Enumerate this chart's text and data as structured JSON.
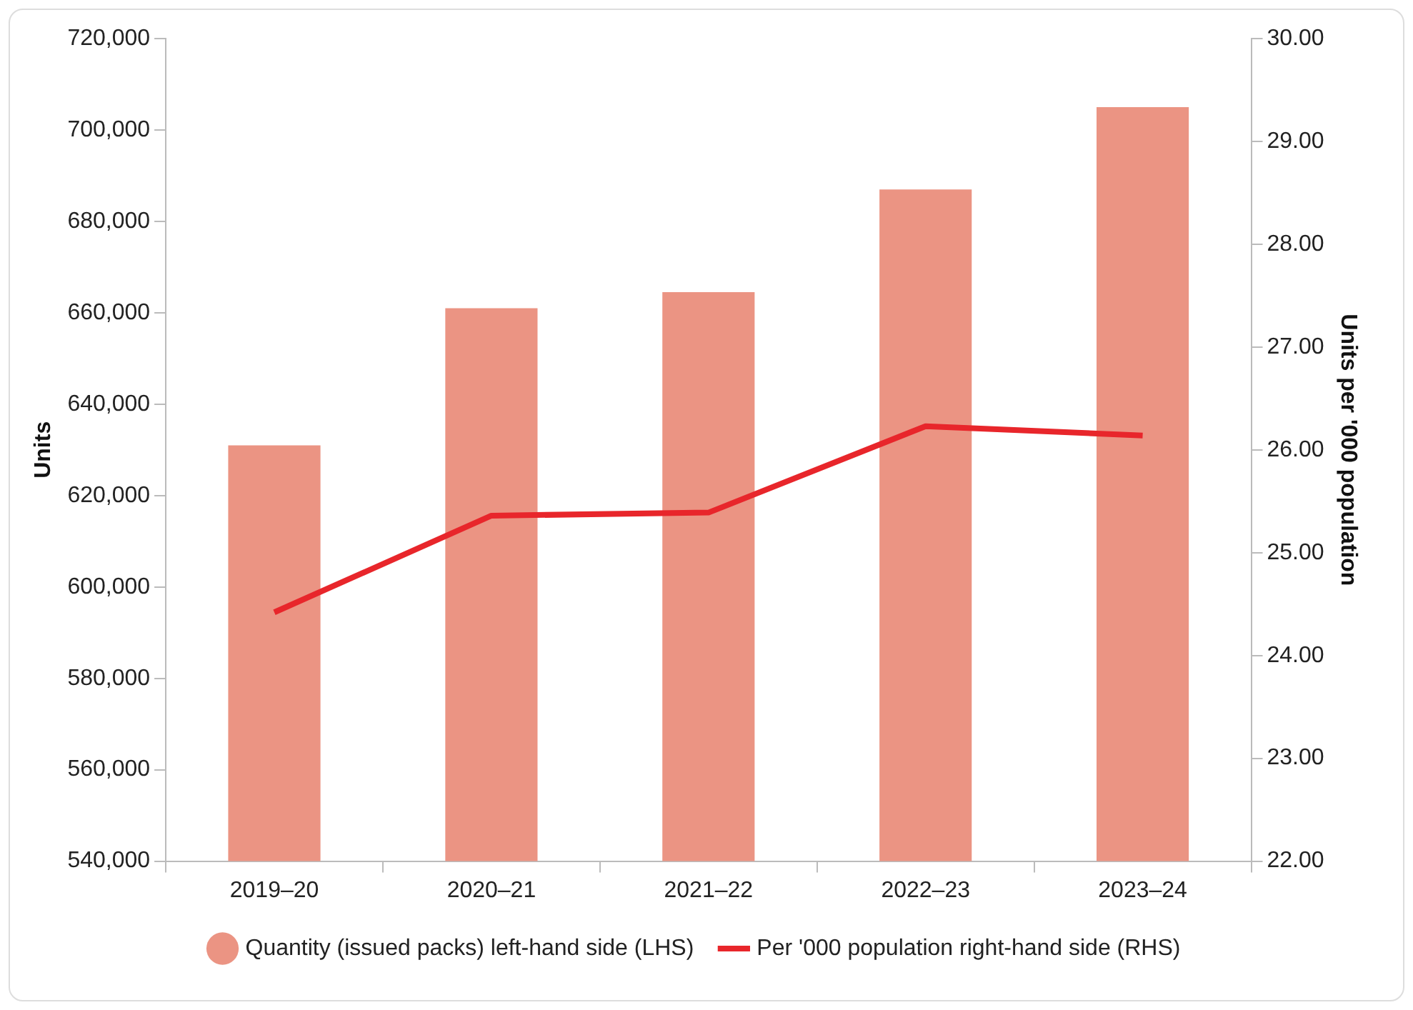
{
  "chart_data": {
    "type": "bar",
    "ylabel": "Units",
    "y2label": "Units per '000 population",
    "categories": [
      "2019–20",
      "2020–21",
      "2021–22",
      "2022–23",
      "2023–24"
    ],
    "series": [
      {
        "name": "Quantity (issued packs) left-hand side (LHS)",
        "color": "#eb9483",
        "values": [
          631000,
          661000,
          664500,
          687000,
          705000
        ]
      },
      {
        "type": "line",
        "name": "Per '000 population right-hand side (RHS)",
        "color": "#e8262b",
        "axis": "y2",
        "values": [
          24.42,
          25.36,
          25.39,
          26.23,
          26.14
        ]
      }
    ],
    "ylim": [
      540000,
      720000
    ],
    "yticks": [
      {
        "value": 540000,
        "label": "540,000"
      },
      {
        "value": 560000,
        "label": "560,000"
      },
      {
        "value": 580000,
        "label": "580,000"
      },
      {
        "value": 600000,
        "label": "600,000"
      },
      {
        "value": 620000,
        "label": "620,000"
      },
      {
        "value": 640000,
        "label": "640,000"
      },
      {
        "value": 660000,
        "label": "660,000"
      },
      {
        "value": 680000,
        "label": "680,000"
      },
      {
        "value": 700000,
        "label": "700,000"
      },
      {
        "value": 720000,
        "label": "720,000"
      }
    ],
    "y2lim": [
      22,
      30
    ],
    "y2ticks": [
      {
        "value": 22,
        "label": "22.00"
      },
      {
        "value": 23,
        "label": "23.00"
      },
      {
        "value": 24,
        "label": "24.00"
      },
      {
        "value": 25,
        "label": "25.00"
      },
      {
        "value": 26,
        "label": "26.00"
      },
      {
        "value": 27,
        "label": "27.00"
      },
      {
        "value": 28,
        "label": "28.00"
      },
      {
        "value": 29,
        "label": "29.00"
      },
      {
        "value": 30,
        "label": "30.00"
      }
    ],
    "grid": false,
    "legend": "bottom",
    "marker": "none",
    "line_style": "solid"
  }
}
